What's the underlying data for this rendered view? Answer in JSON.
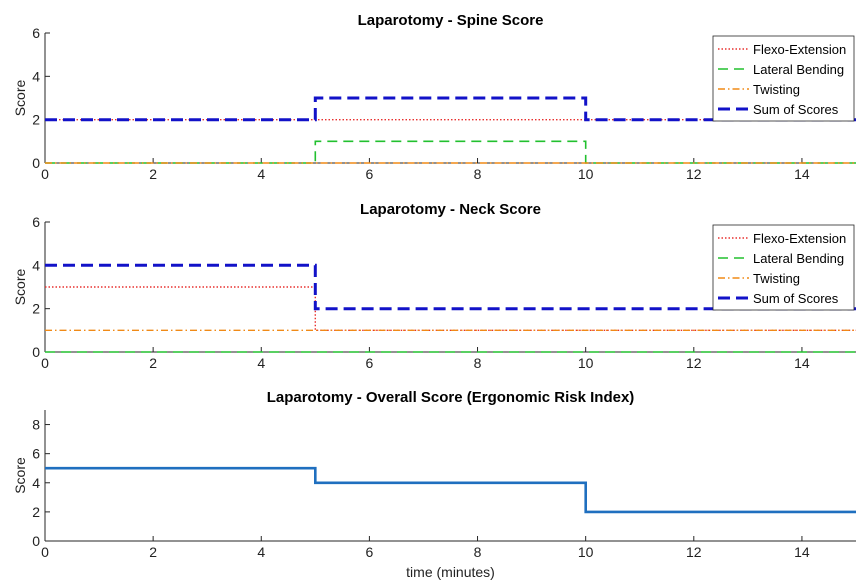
{
  "colors": {
    "flexo": "#e8302f",
    "lateral": "#22c02f",
    "twisting": "#f08a17",
    "sum": "#1212c8",
    "overall": "#1f6fbf"
  },
  "chart_data": [
    {
      "type": "line",
      "title": "Laparotomy - Spine Score",
      "xlabel": "",
      "ylabel": "Score",
      "xlim": [
        0,
        15
      ],
      "ylim": [
        0,
        6
      ],
      "xticks": [
        "0",
        "2",
        "4",
        "6",
        "8",
        "10",
        "12",
        "14"
      ],
      "yticks": [
        "0",
        "2",
        "4",
        "6"
      ],
      "legend_position": "top-right",
      "series": [
        {
          "name": "Flexo-Extension",
          "style": "dotted",
          "color": "#e8302f",
          "x": [
            0,
            5,
            5,
            10,
            10,
            15
          ],
          "y": [
            2,
            2,
            2,
            2,
            2,
            2
          ]
        },
        {
          "name": "Lateral Bending",
          "style": "dashed",
          "color": "#22c02f",
          "x": [
            0,
            5,
            5,
            10,
            10,
            15
          ],
          "y": [
            0,
            0,
            1,
            1,
            0,
            0
          ]
        },
        {
          "name": "Twisting",
          "style": "dashdot",
          "color": "#f08a17",
          "x": [
            0,
            5,
            5,
            10,
            10,
            15
          ],
          "y": [
            0,
            0,
            0,
            0,
            0,
            0
          ]
        },
        {
          "name": "Sum of Scores",
          "style": "thickdash",
          "color": "#1212c8",
          "x": [
            0,
            5,
            5,
            10,
            10,
            15
          ],
          "y": [
            2,
            2,
            3,
            3,
            2,
            2
          ]
        }
      ]
    },
    {
      "type": "line",
      "title": "Laparotomy - Neck Score",
      "xlabel": "",
      "ylabel": "Score",
      "xlim": [
        0,
        15
      ],
      "ylim": [
        0,
        6
      ],
      "xticks": [
        "0",
        "2",
        "4",
        "6",
        "8",
        "10",
        "12",
        "14"
      ],
      "yticks": [
        "0",
        "2",
        "4",
        "6"
      ],
      "legend_position": "top-right",
      "series": [
        {
          "name": "Flexo-Extension",
          "style": "dotted",
          "color": "#e8302f",
          "x": [
            0,
            5,
            5,
            15
          ],
          "y": [
            3,
            3,
            1,
            1
          ]
        },
        {
          "name": "Lateral Bending",
          "style": "dashed",
          "color": "#22c02f",
          "x": [
            0,
            15
          ],
          "y": [
            0,
            0
          ]
        },
        {
          "name": "Twisting",
          "style": "dashdot",
          "color": "#f08a17",
          "x": [
            0,
            15
          ],
          "y": [
            1,
            1
          ]
        },
        {
          "name": "Sum of Scores",
          "style": "thickdash",
          "color": "#1212c8",
          "x": [
            0,
            5,
            5,
            15
          ],
          "y": [
            4,
            4,
            2,
            2
          ]
        }
      ]
    },
    {
      "type": "line",
      "title": "Laparotomy - Overall Score (Ergonomic Risk Index)",
      "xlabel": "time (minutes)",
      "ylabel": "Score",
      "xlim": [
        0,
        15
      ],
      "ylim": [
        0,
        9
      ],
      "xticks": [
        "0",
        "2",
        "4",
        "6",
        "8",
        "10",
        "12",
        "14"
      ],
      "yticks": [
        "0",
        "2",
        "4",
        "6",
        "8"
      ],
      "legend_position": "none",
      "series": [
        {
          "style": "solid",
          "color": "#1f6fbf",
          "x": [
            0,
            5,
            5,
            10,
            10,
            15
          ],
          "y": [
            5,
            5,
            4,
            4,
            2,
            2
          ]
        }
      ]
    }
  ]
}
